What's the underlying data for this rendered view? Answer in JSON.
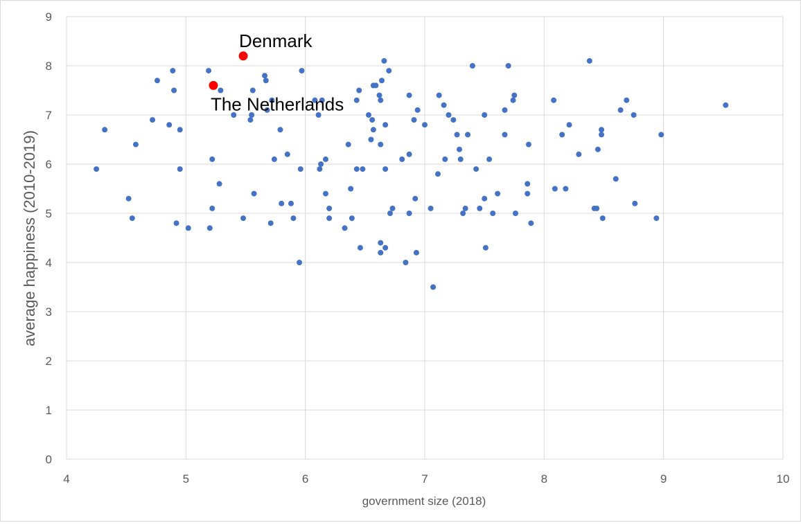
{
  "chart_data": {
    "type": "scatter",
    "title": "",
    "xlabel": "government size (2018)",
    "ylabel": "average happiness (2010-2019)",
    "xlim": [
      4,
      10
    ],
    "ylim": [
      0,
      9
    ],
    "x_ticks": [
      "4",
      "5",
      "6",
      "7",
      "8",
      "9",
      "10"
    ],
    "y_ticks": [
      "0",
      "1",
      "2",
      "3",
      "4",
      "5",
      "6",
      "7",
      "8",
      "9"
    ],
    "grid": true,
    "legend": "none",
    "colors": {
      "points": "#4472C4",
      "highlight": "#FF0000",
      "grid": "#D9D9D9"
    },
    "points": [
      [
        4.25,
        5.9
      ],
      [
        4.32,
        6.7
      ],
      [
        4.52,
        5.3
      ],
      [
        4.55,
        4.9
      ],
      [
        4.58,
        6.4
      ],
      [
        4.72,
        6.9
      ],
      [
        4.76,
        7.7
      ],
      [
        4.86,
        6.8
      ],
      [
        4.89,
        7.9
      ],
      [
        4.9,
        7.5
      ],
      [
        4.92,
        4.8
      ],
      [
        4.95,
        6.7
      ],
      [
        4.95,
        5.9
      ],
      [
        5.02,
        4.7
      ],
      [
        5.19,
        7.9
      ],
      [
        5.2,
        4.7
      ],
      [
        5.22,
        5.1
      ],
      [
        5.22,
        6.1
      ],
      [
        5.28,
        5.6
      ],
      [
        5.29,
        7.5
      ],
      [
        5.4,
        7.0
      ],
      [
        5.48,
        4.9
      ],
      [
        5.54,
        6.9
      ],
      [
        5.55,
        7.0
      ],
      [
        5.56,
        7.5
      ],
      [
        5.57,
        5.4
      ],
      [
        5.66,
        7.8
      ],
      [
        5.67,
        7.7
      ],
      [
        5.68,
        7.1
      ],
      [
        5.71,
        4.8
      ],
      [
        5.72,
        7.3
      ],
      [
        5.74,
        6.1
      ],
      [
        5.79,
        6.7
      ],
      [
        5.8,
        5.2
      ],
      [
        5.85,
        6.2
      ],
      [
        5.88,
        5.2
      ],
      [
        5.9,
        4.9
      ],
      [
        5.95,
        4.0
      ],
      [
        5.96,
        5.9
      ],
      [
        5.97,
        7.9
      ],
      [
        6.08,
        7.3
      ],
      [
        6.11,
        7.0
      ],
      [
        6.12,
        5.9
      ],
      [
        6.13,
        6.0
      ],
      [
        6.14,
        7.3
      ],
      [
        6.17,
        6.1
      ],
      [
        6.17,
        5.4
      ],
      [
        6.2,
        5.1
      ],
      [
        6.2,
        4.9
      ],
      [
        6.33,
        4.7
      ],
      [
        6.36,
        6.4
      ],
      [
        6.38,
        5.5
      ],
      [
        6.39,
        4.9
      ],
      [
        6.43,
        7.3
      ],
      [
        6.43,
        5.9
      ],
      [
        6.45,
        7.5
      ],
      [
        6.46,
        4.3
      ],
      [
        6.48,
        5.9
      ],
      [
        6.53,
        7.0
      ],
      [
        6.55,
        6.5
      ],
      [
        6.56,
        6.9
      ],
      [
        6.57,
        6.7
      ],
      [
        6.57,
        7.6
      ],
      [
        6.59,
        7.6
      ],
      [
        6.62,
        7.4
      ],
      [
        6.63,
        7.3
      ],
      [
        6.63,
        6.4
      ],
      [
        6.63,
        4.4
      ],
      [
        6.63,
        4.2
      ],
      [
        6.64,
        7.7
      ],
      [
        6.66,
        8.1
      ],
      [
        6.67,
        6.8
      ],
      [
        6.67,
        5.9
      ],
      [
        6.67,
        4.3
      ],
      [
        6.7,
        7.9
      ],
      [
        6.71,
        5.0
      ],
      [
        6.73,
        5.1
      ],
      [
        6.81,
        6.1
      ],
      [
        6.84,
        4.0
      ],
      [
        6.87,
        7.4
      ],
      [
        6.87,
        6.2
      ],
      [
        6.87,
        5.0
      ],
      [
        6.91,
        6.9
      ],
      [
        6.92,
        5.3
      ],
      [
        6.93,
        4.2
      ],
      [
        6.94,
        7.1
      ],
      [
        7.0,
        6.8
      ],
      [
        7.05,
        5.1
      ],
      [
        7.07,
        3.5
      ],
      [
        7.11,
        5.8
      ],
      [
        7.12,
        7.4
      ],
      [
        7.16,
        7.2
      ],
      [
        7.17,
        6.1
      ],
      [
        7.2,
        7.0
      ],
      [
        7.24,
        6.9
      ],
      [
        7.27,
        6.6
      ],
      [
        7.29,
        6.3
      ],
      [
        7.3,
        6.1
      ],
      [
        7.32,
        5.0
      ],
      [
        7.34,
        5.1
      ],
      [
        7.36,
        6.6
      ],
      [
        7.4,
        8.0
      ],
      [
        7.43,
        5.9
      ],
      [
        7.46,
        5.1
      ],
      [
        7.5,
        7.0
      ],
      [
        7.5,
        5.3
      ],
      [
        7.51,
        4.3
      ],
      [
        7.54,
        6.1
      ],
      [
        7.57,
        5.0
      ],
      [
        7.61,
        5.4
      ],
      [
        7.67,
        7.1
      ],
      [
        7.67,
        6.6
      ],
      [
        7.7,
        8.0
      ],
      [
        7.74,
        7.3
      ],
      [
        7.75,
        7.4
      ],
      [
        7.76,
        5.0
      ],
      [
        7.86,
        5.4
      ],
      [
        7.86,
        5.6
      ],
      [
        7.87,
        6.4
      ],
      [
        7.89,
        4.8
      ],
      [
        8.08,
        7.3
      ],
      [
        8.09,
        5.5
      ],
      [
        8.15,
        6.6
      ],
      [
        8.18,
        5.5
      ],
      [
        8.21,
        6.8
      ],
      [
        8.29,
        6.2
      ],
      [
        8.38,
        8.1
      ],
      [
        8.42,
        5.1
      ],
      [
        8.44,
        5.1
      ],
      [
        8.45,
        6.3
      ],
      [
        8.48,
        6.7
      ],
      [
        8.48,
        6.6
      ],
      [
        8.49,
        4.9
      ],
      [
        8.6,
        5.7
      ],
      [
        8.64,
        7.1
      ],
      [
        8.69,
        7.3
      ],
      [
        8.75,
        7.0
      ],
      [
        8.76,
        5.2
      ],
      [
        8.94,
        4.9
      ],
      [
        8.98,
        6.6
      ],
      [
        9.52,
        7.2
      ]
    ],
    "highlighted": [
      {
        "label": "Denmark",
        "x": 5.48,
        "y": 8.2
      },
      {
        "label": "The Netherlands",
        "x": 5.23,
        "y": 7.6
      }
    ]
  }
}
